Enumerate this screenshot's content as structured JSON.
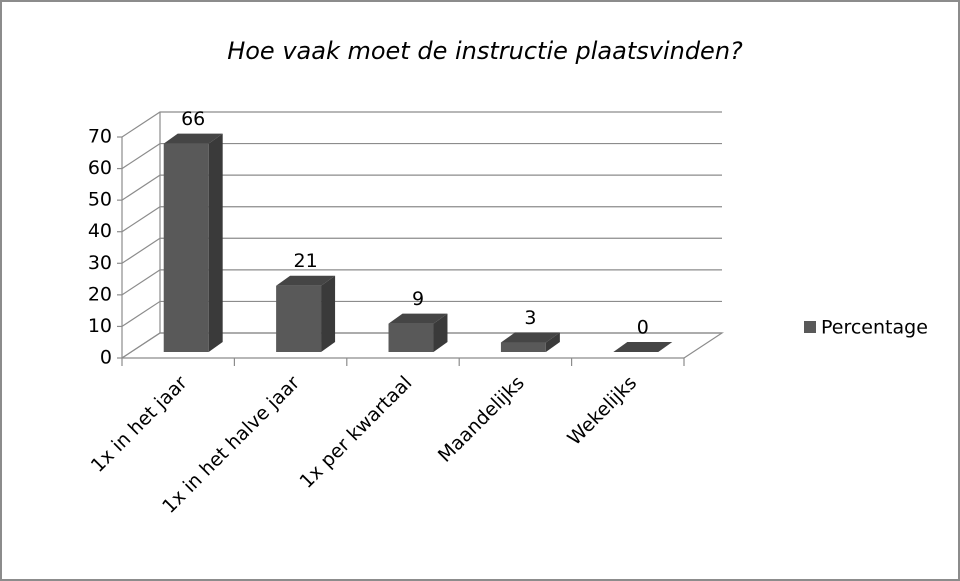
{
  "chart_data": {
    "type": "bar3d",
    "title": "Hoe vaak moet de instructie plaatsvinden?",
    "categories": [
      "1x in het jaar",
      "1x in het halve jaar",
      "1x per kwartaal",
      "Maandelijks",
      "Wekelijks"
    ],
    "series": [
      {
        "name": "Percentage",
        "color": "#595959",
        "values": [
          66,
          21,
          9,
          3,
          0
        ]
      }
    ],
    "ylim": [
      0,
      70
    ],
    "yticks": [
      0,
      10,
      20,
      30,
      40,
      50,
      60,
      70
    ],
    "grid": true,
    "legend": "right"
  }
}
